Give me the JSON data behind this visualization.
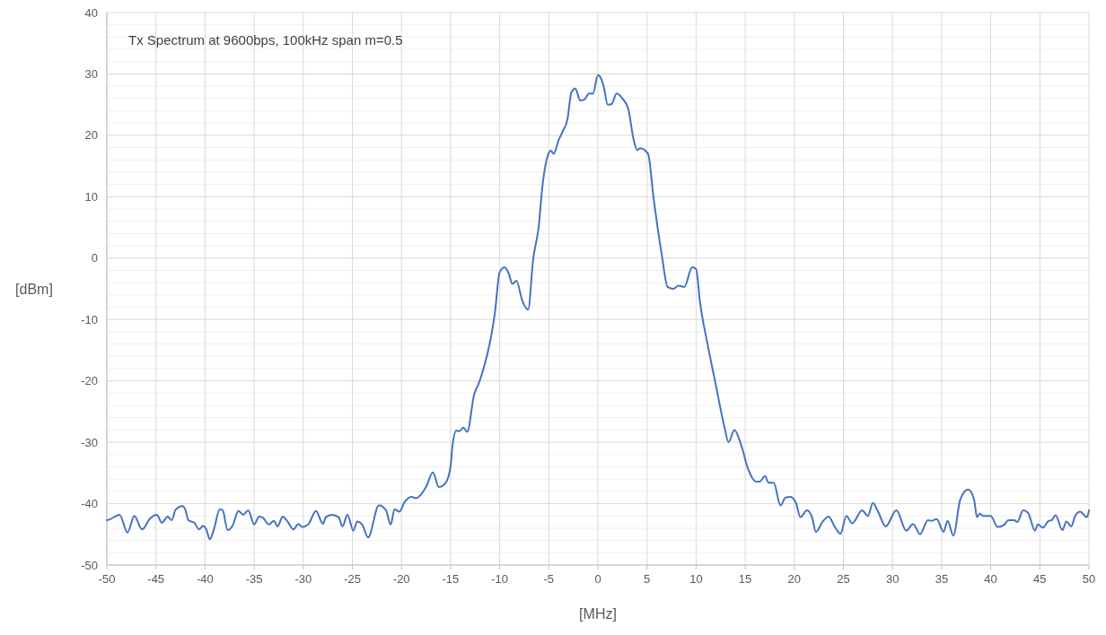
{
  "chart_data": {
    "type": "line",
    "title": "Tx Spectrum at 9600bps, 100kHz span m=0.5",
    "xlabel": "[MHz]",
    "ylabel": "[dBm]",
    "xlim": [
      -50,
      50
    ],
    "xticks": [
      -50,
      -45,
      -40,
      -35,
      -30,
      -25,
      -20,
      -15,
      -10,
      -5,
      0,
      5,
      10,
      15,
      20,
      25,
      30,
      35,
      40,
      45,
      50
    ],
    "ylim": [
      -50,
      40
    ],
    "yticks": [
      -50,
      {
        "value": -48,
        "label": null
      },
      {
        "value": -46,
        "label": null
      },
      {
        "value": -44,
        "label": null
      },
      {
        "value": -42,
        "label": null
      },
      -40,
      {
        "value": -38,
        "label": null
      },
      {
        "value": -36,
        "label": null
      },
      {
        "value": -34,
        "label": null
      },
      {
        "value": -32,
        "label": null
      },
      -30,
      {
        "value": -28,
        "label": null
      },
      {
        "value": -26,
        "label": null
      },
      {
        "value": -24,
        "label": null
      },
      {
        "value": -22,
        "label": null
      },
      -20,
      {
        "value": -18,
        "label": null
      },
      {
        "value": -16,
        "label": null
      },
      {
        "value": -14,
        "label": null
      },
      {
        "value": -12,
        "label": null
      },
      -10,
      {
        "value": -8,
        "label": null
      },
      {
        "value": -6,
        "label": null
      },
      {
        "value": -4,
        "label": null
      },
      {
        "value": -2,
        "label": null
      },
      0,
      {
        "value": 2,
        "label": null
      },
      {
        "value": 4,
        "label": null
      },
      {
        "value": 6,
        "label": null
      },
      {
        "value": 8,
        "label": null
      },
      10,
      {
        "value": 12,
        "label": null
      },
      {
        "value": 14,
        "label": null
      },
      {
        "value": 16,
        "label": null
      },
      {
        "value": 18,
        "label": null
      },
      20,
      {
        "value": 22,
        "label": null
      },
      {
        "value": 24,
        "label": null
      },
      {
        "value": 26,
        "label": null
      },
      {
        "value": 28,
        "label": null
      },
      30,
      {
        "value": 32,
        "label": null
      },
      {
        "value": 34,
        "label": null
      },
      {
        "value": 36,
        "label": null
      },
      {
        "value": 38,
        "label": null
      },
      40
    ],
    "grid": true,
    "line_style": "solid",
    "marker": "none",
    "series": [
      {
        "color": "#4472c4",
        "x": [
          -50,
          -49.75,
          -48.7,
          -47.9,
          -47.2,
          -46.4,
          -45.6,
          -44.9,
          -44.4,
          -43.8,
          -43.4,
          -43,
          -42.3,
          -42,
          -41.7,
          -41.1,
          -40.6,
          -40.2,
          -39.9,
          -39.5,
          -39.1,
          -38.5,
          -38.2,
          -37.7,
          -37.2,
          -36.6,
          -36.1,
          -35.6,
          -35,
          -34.5,
          -34.1,
          -33.5,
          -33,
          -32.6,
          -32.1,
          -31.6,
          -31,
          -30.5,
          -30.1,
          -29.5,
          -28.7,
          -28,
          -27.7,
          -27.1,
          -26.4,
          -26,
          -25.5,
          -24.9,
          -24.5,
          -24,
          -23.4,
          -22.3,
          -21.6,
          -21.1,
          -20.7,
          -20.2,
          -19.7,
          -19,
          -18.5,
          -17.5,
          -16.8,
          -16.2,
          -15.5,
          -15,
          -14.8,
          -14.4,
          -14.1,
          -13.7,
          -13.3,
          -12.6,
          -12.1,
          -11.7,
          -10.9,
          -10.5,
          -10,
          -9.5,
          -9.1,
          -8.7,
          -8.3,
          -7.7,
          -7.1,
          -6.6,
          -6,
          -5.7,
          -5.1,
          -4.8,
          -4.5,
          -4,
          -3.6,
          -3.1,
          -2.7,
          -2.3,
          -1.8,
          -1.4,
          -0.9,
          -0.5,
          0,
          0.2,
          0.6,
          1,
          1.4,
          1.9,
          2.5,
          3.1,
          3.6,
          4,
          4.3,
          5.1,
          5.7,
          6.5,
          7.1,
          7.7,
          8.2,
          8.8,
          9.6,
          10,
          10.4,
          11.1,
          11.9,
          12.9,
          13.3,
          13.9,
          14.6,
          15.3,
          16.1,
          16.5,
          17,
          17.4,
          17.9,
          18.6,
          19.1,
          19.6,
          20.2,
          20.6,
          21.3,
          21.8,
          22.2,
          22.9,
          23.5,
          24.1,
          24.7,
          25.3,
          25.9,
          26.9,
          27.5,
          28,
          28.5,
          29.3,
          30.4,
          31.4,
          32.1,
          32.8,
          33.6,
          34,
          34.5,
          35.2,
          35.6,
          36.2,
          36.9,
          37.7,
          38.3,
          38.6,
          38.9,
          39.2,
          40,
          40.7,
          41.4,
          41.8,
          42.4,
          42.7,
          43.3,
          43.8,
          44.5,
          44.8,
          45.3,
          45.9,
          46.2,
          46.6,
          47.3,
          47.7,
          48.2,
          48.6,
          49.1,
          49.8,
          50
        ],
        "values": [
          -42.7,
          -42.6,
          -41.8,
          -44.7,
          -42,
          -44.2,
          -42.4,
          -41.8,
          -43.1,
          -42.1,
          -42.7,
          -41,
          -40.4,
          -41,
          -42.7,
          -43.1,
          -44.2,
          -43.6,
          -44.1,
          -45.8,
          -44.2,
          -40.9,
          -41.1,
          -44.3,
          -43.6,
          -41.2,
          -41.8,
          -41.1,
          -43.4,
          -42.1,
          -42.3,
          -43.4,
          -42.8,
          -43.7,
          -42.1,
          -42.9,
          -44.2,
          -43.3,
          -43.8,
          -43.4,
          -41.2,
          -43.3,
          -42.2,
          -41.8,
          -42.2,
          -43.7,
          -41.8,
          -44.4,
          -42.9,
          -43.4,
          -45.5,
          -40.3,
          -41,
          -43.4,
          -40.9,
          -41.3,
          -39.8,
          -38.9,
          -39.1,
          -37.3,
          -34.9,
          -37.3,
          -36.6,
          -33.9,
          -30.5,
          -28.1,
          -28.2,
          -27.6,
          -28.3,
          -22.2,
          -20.3,
          -18.3,
          -13,
          -9.1,
          -2.3,
          -1.5,
          -2.4,
          -4.2,
          -3.7,
          -6.9,
          -8.4,
          -0.3,
          5.5,
          10.9,
          16.7,
          17.5,
          17,
          19.2,
          20.6,
          22.6,
          27,
          27.6,
          25.7,
          25.8,
          26.8,
          26.8,
          29.8,
          29.6,
          27.9,
          25,
          25.1,
          26.8,
          26,
          24.3,
          19.6,
          17.6,
          17.9,
          17,
          9.4,
          0.6,
          -4.7,
          -5,
          -4.5,
          -4.7,
          -1.5,
          -1.8,
          -7.2,
          -13.5,
          -19.8,
          -27.6,
          -30,
          -28,
          -30.5,
          -34.4,
          -36.4,
          -36.4,
          -35.5,
          -36.6,
          -36.6,
          -40.3,
          -39,
          -38.9,
          -40,
          -42.2,
          -41.1,
          -42.2,
          -44.6,
          -42.9,
          -42.1,
          -43.7,
          -44.9,
          -42,
          -43.2,
          -41.1,
          -42,
          -39.9,
          -41.2,
          -43.7,
          -41.1,
          -44.4,
          -43.3,
          -45,
          -42.7,
          -42.8,
          -42.5,
          -44.6,
          -42.8,
          -45.2,
          -39.3,
          -37.7,
          -39.3,
          -42.2,
          -41.6,
          -42,
          -42,
          -43.8,
          -43.4,
          -42.7,
          -42.7,
          -43,
          -41.1,
          -41.5,
          -44.4,
          -43.4,
          -43.9,
          -42.8,
          -42.7,
          -41.9,
          -44.3,
          -42.9,
          -43.7,
          -42,
          -41.3,
          -42.2,
          -41.1
        ]
      }
    ]
  }
}
